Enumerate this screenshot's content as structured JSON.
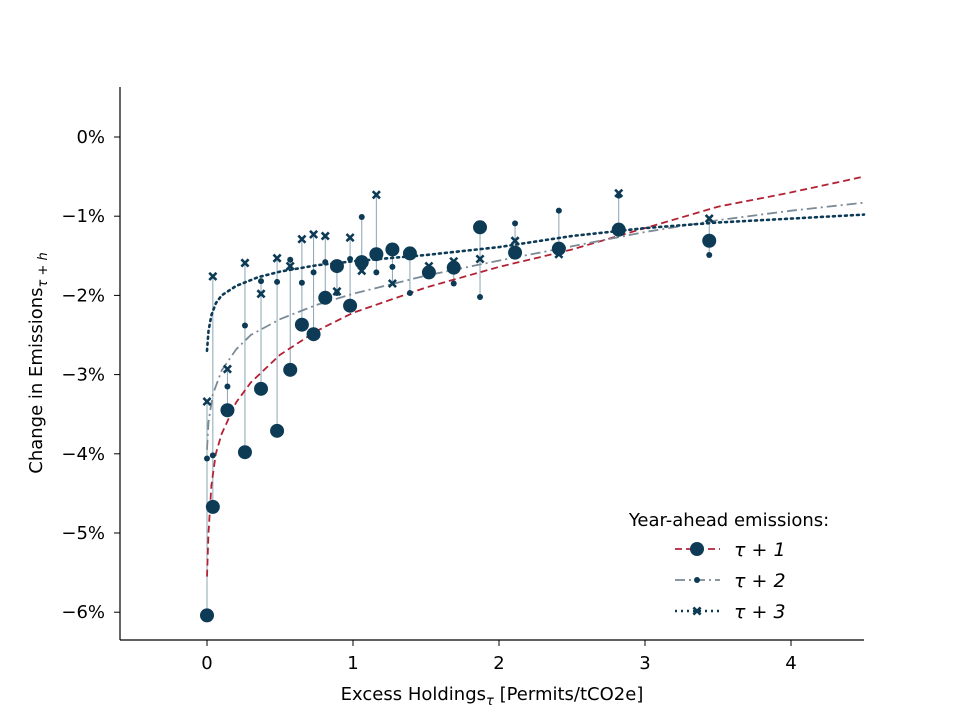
{
  "chart_data": {
    "type": "scatter",
    "xlabel": "Excess Holdings",
    "xlabel_sub": "τ",
    "xlabel_suffix": " [Permits/tCO2e]",
    "ylabel": "Change in Emissions",
    "ylabel_sub": "τ + h",
    "xlim": [
      -0.6,
      4.5
    ],
    "ylim": [
      -6.35,
      0.65
    ],
    "xticks": [
      0,
      1,
      2,
      3,
      4
    ],
    "xtick_labels": [
      "0",
      "1",
      "2",
      "3",
      "4"
    ],
    "yticks": [
      0,
      -1,
      -2,
      -3,
      -4,
      -5,
      -6
    ],
    "ytick_labels": [
      "0%",
      "−1%",
      "−2%",
      "−3%",
      "−4%",
      "−5%",
      "−6%"
    ],
    "grid": false,
    "legend": {
      "title": "Year-ahead emissions:",
      "placement": "lower right",
      "entries": [
        "τ + 1",
        "τ + 2",
        "τ + 3"
      ]
    },
    "colors": {
      "points": "#0d3b56",
      "connector": "#8aa5b5",
      "fit1": "#b22234",
      "fit2": "#7a8a96",
      "fit3": "#0d3b56"
    },
    "x": [
      0.0,
      0.04,
      0.14,
      0.26,
      0.37,
      0.48,
      0.57,
      0.65,
      0.73,
      0.81,
      0.89,
      0.98,
      1.06,
      1.16,
      1.27,
      1.39,
      1.52,
      1.69,
      1.87,
      2.11,
      2.41,
      2.82,
      3.44
    ],
    "series": [
      {
        "name": "τ + 1",
        "marker": "large-circle",
        "values": [
          -6.04,
          -4.67,
          -3.45,
          -3.98,
          -3.18,
          -3.71,
          -2.94,
          -2.37,
          -2.49,
          -2.03,
          -1.63,
          -2.13,
          -1.58,
          -1.48,
          -1.42,
          -1.47,
          -1.71,
          -1.65,
          -1.14,
          -1.46,
          -1.41,
          -1.17,
          -1.31
        ],
        "fit": {
          "style": "dashed",
          "points": [
            [
              0.0,
              -5.55
            ],
            [
              0.01,
              -5.0
            ],
            [
              0.03,
              -4.4
            ],
            [
              0.06,
              -4.0
            ],
            [
              0.1,
              -3.75
            ],
            [
              0.2,
              -3.35
            ],
            [
              0.3,
              -3.1
            ],
            [
              0.5,
              -2.75
            ],
            [
              0.75,
              -2.45
            ],
            [
              1.0,
              -2.22
            ],
            [
              1.5,
              -1.9
            ],
            [
              2.0,
              -1.64
            ],
            [
              2.5,
              -1.42
            ],
            [
              3.0,
              -1.15
            ],
            [
              3.5,
              -0.88
            ],
            [
              4.0,
              -0.7
            ],
            [
              4.5,
              -0.5
            ]
          ]
        }
      },
      {
        "name": "τ + 2",
        "marker": "small-circle",
        "values": [
          -4.06,
          -4.02,
          -3.15,
          -2.38,
          -1.82,
          -1.83,
          -1.55,
          -1.84,
          -1.71,
          -1.58,
          -1.97,
          -1.54,
          -1.01,
          -1.71,
          -1.64,
          -1.97,
          -1.66,
          -1.85,
          -2.02,
          -1.09,
          -0.93,
          -0.74,
          -1.49
        ],
        "fit": {
          "style": "dashdot",
          "points": [
            [
              0.0,
              -3.95
            ],
            [
              0.01,
              -3.6
            ],
            [
              0.04,
              -3.25
            ],
            [
              0.1,
              -2.95
            ],
            [
              0.2,
              -2.68
            ],
            [
              0.3,
              -2.5
            ],
            [
              0.5,
              -2.3
            ],
            [
              0.75,
              -2.12
            ],
            [
              1.0,
              -1.98
            ],
            [
              1.5,
              -1.75
            ],
            [
              2.0,
              -1.56
            ],
            [
              2.5,
              -1.38
            ],
            [
              3.0,
              -1.2
            ],
            [
              3.5,
              -1.05
            ],
            [
              4.0,
              -0.93
            ],
            [
              4.5,
              -0.83
            ]
          ]
        }
      },
      {
        "name": "τ + 3",
        "marker": "x",
        "values": [
          -3.34,
          -1.76,
          -2.93,
          -1.59,
          -1.98,
          -1.53,
          -1.63,
          -1.29,
          -1.23,
          -1.25,
          -1.95,
          -1.27,
          -1.69,
          -0.73,
          -1.85,
          -1.47,
          -1.63,
          -1.57,
          -1.54,
          -1.31,
          -1.48,
          -0.71,
          -1.03
        ],
        "fit": {
          "style": "dotted",
          "points": [
            [
              0.0,
              -2.7
            ],
            [
              0.01,
              -2.45
            ],
            [
              0.03,
              -2.25
            ],
            [
              0.06,
              -2.1
            ],
            [
              0.1,
              -2.0
            ],
            [
              0.2,
              -1.88
            ],
            [
              0.35,
              -1.77
            ],
            [
              0.5,
              -1.7
            ],
            [
              0.75,
              -1.62
            ],
            [
              1.0,
              -1.57
            ],
            [
              1.5,
              -1.49
            ],
            [
              2.0,
              -1.39
            ],
            [
              2.5,
              -1.25
            ],
            [
              3.0,
              -1.15
            ],
            [
              3.5,
              -1.08
            ],
            [
              4.0,
              -1.03
            ],
            [
              4.5,
              -0.98
            ]
          ]
        }
      }
    ]
  }
}
